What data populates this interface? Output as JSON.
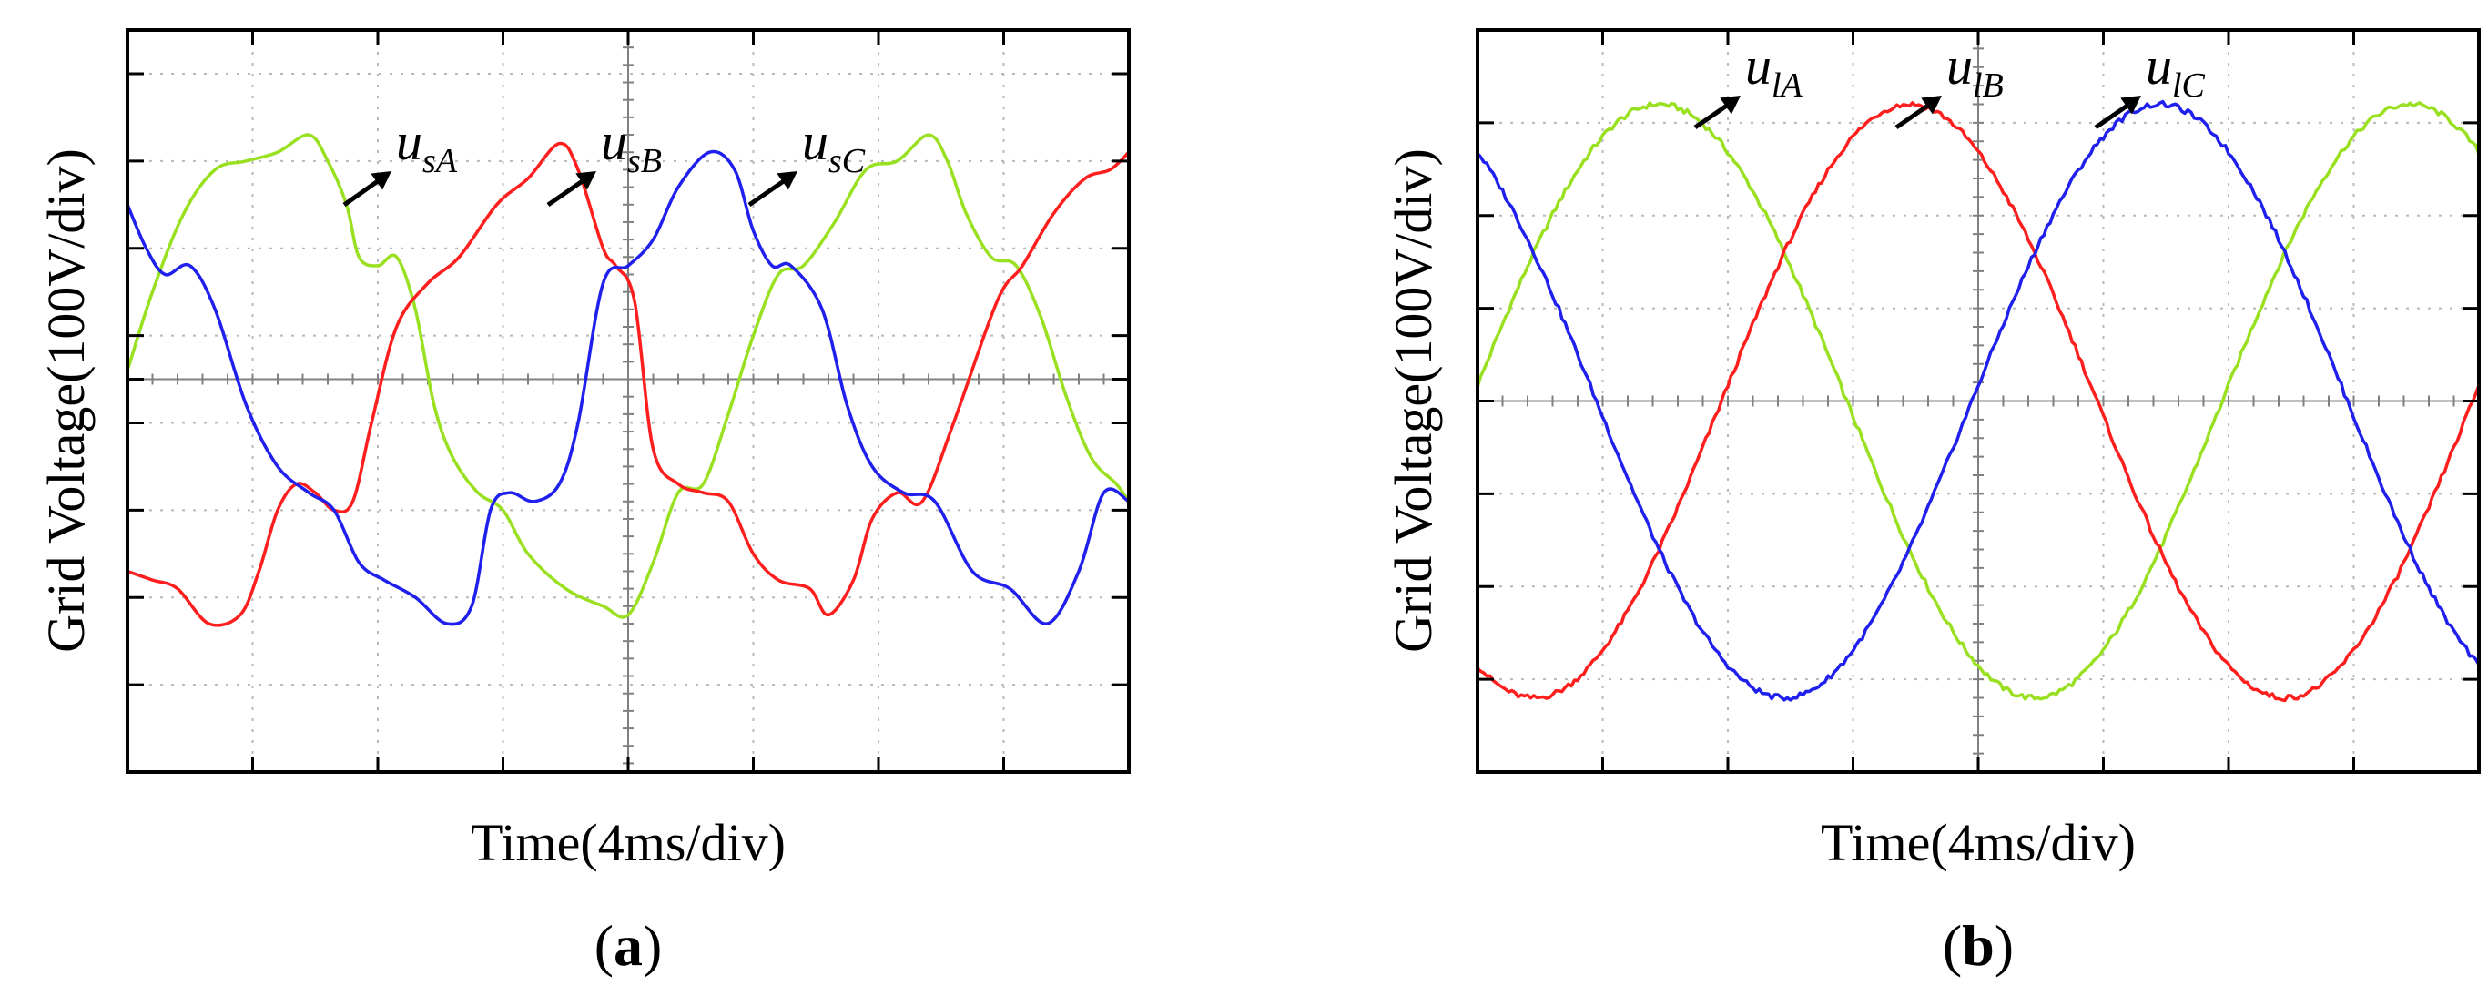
{
  "chart_data": [
    {
      "type": "line",
      "panel_label": "a",
      "xlabel": "Time(4ms/div)",
      "ylabel": "Grid Voltage(100V/div)",
      "x_unit": "div",
      "y_unit": "div",
      "xlim": [
        0,
        8
      ],
      "ylim": [
        -4.5,
        4
      ],
      "x_divisions": 8,
      "grid": true,
      "annotations": [
        {
          "main": "u",
          "sub": "sA",
          "series": "A"
        },
        {
          "main": "u",
          "sub": "sB",
          "series": "B"
        },
        {
          "main": "u",
          "sub": "sC",
          "series": "C"
        }
      ],
      "series": [
        {
          "name": "usA",
          "color": "#99e020",
          "x": [
            0,
            0.2,
            0.45,
            0.7,
            0.95,
            1.2,
            1.45,
            1.6,
            1.75,
            1.85,
            2.0,
            2.15,
            2.3,
            2.45,
            2.6,
            2.8,
            3.0,
            3.2,
            3.5,
            3.8,
            4.0,
            4.2,
            4.4,
            4.6,
            4.8,
            5.0,
            5.2,
            5.4,
            5.65,
            5.9,
            6.15,
            6.4,
            6.55,
            6.7,
            6.9,
            7.1,
            7.3,
            7.5,
            7.7,
            7.9,
            8.0
          ],
          "y": [
            0.1,
            1.0,
            1.9,
            2.4,
            2.5,
            2.6,
            2.8,
            2.5,
            2.0,
            1.4,
            1.3,
            1.4,
            0.8,
            -0.3,
            -0.9,
            -1.3,
            -1.5,
            -2.0,
            -2.4,
            -2.6,
            -2.7,
            -2.1,
            -1.3,
            -1.2,
            -0.4,
            0.5,
            1.2,
            1.3,
            1.8,
            2.4,
            2.5,
            2.8,
            2.5,
            1.9,
            1.4,
            1.3,
            0.7,
            -0.2,
            -0.9,
            -1.2,
            -1.4
          ]
        },
        {
          "name": "usB",
          "color": "#ff1e1e",
          "x": [
            0,
            0.2,
            0.4,
            0.65,
            0.9,
            1.05,
            1.2,
            1.35,
            1.5,
            1.65,
            1.8,
            1.95,
            2.15,
            2.4,
            2.65,
            2.95,
            3.2,
            3.45,
            3.6,
            3.8,
            3.9,
            4.05,
            4.2,
            4.4,
            4.6,
            4.8,
            5.0,
            5.2,
            5.45,
            5.6,
            5.8,
            5.95,
            6.15,
            6.35,
            6.6,
            6.95,
            7.15,
            7.4,
            7.65,
            7.85,
            8.0
          ],
          "y": [
            -2.2,
            -2.3,
            -2.4,
            -2.8,
            -2.7,
            -2.2,
            -1.5,
            -1.2,
            -1.3,
            -1.5,
            -1.4,
            -0.5,
            0.6,
            1.1,
            1.4,
            2.0,
            2.3,
            2.7,
            2.4,
            1.5,
            1.3,
            0.9,
            -0.8,
            -1.2,
            -1.3,
            -1.4,
            -2.0,
            -2.3,
            -2.4,
            -2.7,
            -2.3,
            -1.6,
            -1.3,
            -1.4,
            -0.5,
            0.9,
            1.3,
            1.9,
            2.3,
            2.4,
            2.6
          ]
        },
        {
          "name": "usC",
          "color": "#2020ee",
          "x": [
            0,
            0.15,
            0.3,
            0.5,
            0.7,
            0.95,
            1.2,
            1.45,
            1.65,
            1.85,
            2.05,
            2.3,
            2.55,
            2.75,
            2.9,
            3.05,
            3.25,
            3.45,
            3.6,
            3.8,
            4.0,
            4.2,
            4.4,
            4.65,
            4.85,
            5.0,
            5.15,
            5.3,
            5.55,
            5.75,
            5.95,
            6.2,
            6.45,
            6.75,
            7.05,
            7.35,
            7.6,
            7.8,
            8.0
          ],
          "y": [
            2.0,
            1.5,
            1.2,
            1.3,
            0.8,
            -0.3,
            -1.0,
            -1.3,
            -1.5,
            -2.1,
            -2.3,
            -2.5,
            -2.8,
            -2.6,
            -1.5,
            -1.3,
            -1.4,
            -1.2,
            -0.5,
            1.1,
            1.3,
            1.6,
            2.2,
            2.6,
            2.4,
            1.7,
            1.3,
            1.3,
            0.8,
            -0.3,
            -1.0,
            -1.3,
            -1.4,
            -2.2,
            -2.4,
            -2.8,
            -2.2,
            -1.3,
            -1.4
          ]
        }
      ]
    },
    {
      "type": "line",
      "panel_label": "b",
      "xlabel": "Time(4ms/div)",
      "ylabel": "Grid Voltage(100V/div)",
      "x_unit": "div",
      "y_unit": "div",
      "xlim": [
        0,
        8
      ],
      "ylim": [
        -4,
        4
      ],
      "x_divisions": 8,
      "grid": true,
      "amplitude": 3.2,
      "period": 6.0,
      "annotations": [
        {
          "main": "u",
          "sub": "lA",
          "series": "A"
        },
        {
          "main": "u",
          "sub": "lB",
          "series": "B"
        },
        {
          "main": "u",
          "sub": "lC",
          "series": "C"
        }
      ],
      "series": [
        {
          "name": "ulA",
          "color": "#99e020",
          "peak_x": 1.45
        },
        {
          "name": "ulB",
          "color": "#ff1e1e",
          "peak_x": 3.45
        },
        {
          "name": "ulC",
          "color": "#2020ee",
          "peak_x": 5.45
        }
      ]
    }
  ]
}
